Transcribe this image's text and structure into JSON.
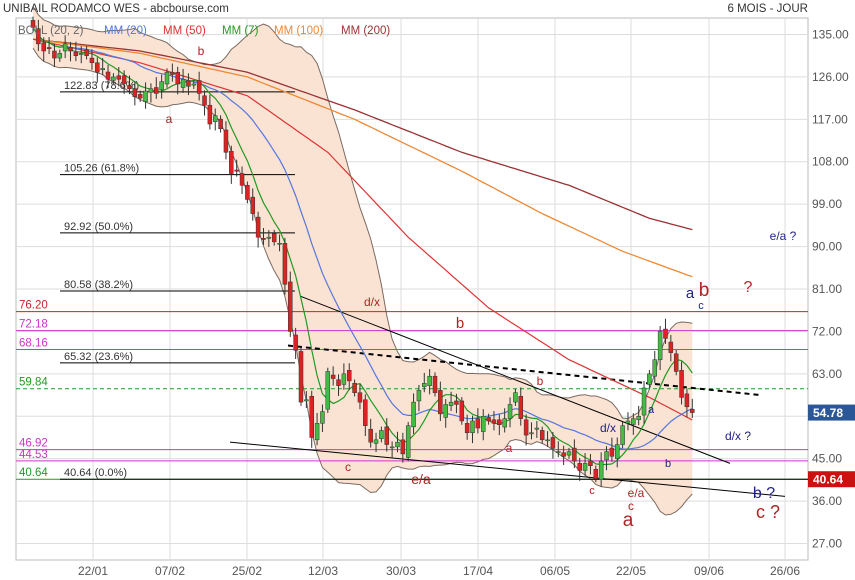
{
  "header": {
    "title": "UNIBAIL RODAMCO WES - abcbourse.com",
    "period": "6 MOIS - JOUR"
  },
  "legend": {
    "boll": "BOLL (20, 2)",
    "items": [
      {
        "label": "MM (20)",
        "color": "#5577dd"
      },
      {
        "label": "MM (50)",
        "color": "#dd3333"
      },
      {
        "label": "MM (7)",
        "color": "#229922"
      },
      {
        "label": "MM (100)",
        "color": "#ee8833"
      },
      {
        "label": "MM (200)",
        "color": "#993333"
      }
    ]
  },
  "colors": {
    "up": "#44bb44",
    "down": "#dd2222",
    "band_fill": "#fbe3d4",
    "band_line": "#7a6a60",
    "grid": "#dddddd",
    "pink": "#cc33cc",
    "red_level": "#cc2222",
    "green_level": "#229922",
    "annot_red": "#b22222",
    "annot_blue": "#22228b"
  },
  "chart_data": {
    "type": "candlestick",
    "y_ticks": [
      135.0,
      126.0,
      117.0,
      108.0,
      99.0,
      90.0,
      81.0,
      72.0,
      63.0,
      54.0,
      45.0,
      36.0,
      27.0
    ],
    "x_ticks": [
      "22/01",
      "07/02",
      "25/02",
      "12/03",
      "30/03",
      "17/04",
      "06/05",
      "22/05",
      "09/06",
      "26/06"
    ],
    "ylim": [
      23.5,
      138.5
    ],
    "last_price": "54.78",
    "fib_levels": [
      {
        "value": 122.83,
        "label": "122.83  (78.6%)"
      },
      {
        "value": 105.26,
        "label": "105.26  (61.8%)"
      },
      {
        "value": 92.92,
        "label": "92.92  (50.0%)"
      },
      {
        "value": 80.58,
        "label": "80.58  (38.2%)"
      },
      {
        "value": 65.32,
        "label": "65.32  (23.6%)"
      },
      {
        "value": 40.64,
        "label": "40.64  (0.0%)"
      }
    ],
    "levels": [
      {
        "value": 76.2,
        "label": "76.20",
        "kind": "red"
      },
      {
        "value": 72.18,
        "label": "72.18",
        "kind": "pink"
      },
      {
        "value": 68.16,
        "label": "68.16",
        "kind": "pink"
      },
      {
        "value": 59.84,
        "label": "59.84",
        "kind": "green-dash"
      },
      {
        "value": 46.92,
        "label": "46.92",
        "kind": "pink"
      },
      {
        "value": 44.53,
        "label": "44.53",
        "kind": "pink"
      },
      {
        "value": 40.64,
        "label": "40.64",
        "kind": "green"
      }
    ],
    "closes": [
      136.5,
      133,
      131.5,
      132,
      130,
      131,
      133,
      131.5,
      130.5,
      131,
      130.5,
      129,
      127,
      127.8,
      125.5,
      126,
      125.5,
      124.6,
      123.5,
      121.8,
      121.5,
      123,
      123.5,
      122.5,
      125,
      127,
      126.5,
      124.5,
      125.5,
      124,
      124.5,
      122.5,
      120,
      116,
      117.8,
      115,
      110,
      105.5,
      106,
      103,
      100,
      97,
      92,
      91.5,
      92,
      91,
      90.7,
      82,
      72,
      68,
      57,
      57.5,
      49.5,
      52.5,
      55,
      63.5,
      62,
      60.5,
      63,
      61.5,
      59,
      57,
      52,
      48.5,
      49,
      51,
      48,
      47.5,
      48.5,
      46,
      52,
      57,
      59.5,
      61,
      62.5,
      59,
      54.5,
      56.5,
      57,
      56.5,
      53,
      50.5,
      53,
      51.5,
      54,
      53,
      52.5,
      52.2,
      53.5,
      56.5,
      59,
      53.5,
      50,
      50.5,
      51.5,
      49,
      49,
      47.2,
      46.5,
      45.5,
      46.5,
      44.5,
      42.5,
      44,
      43.5,
      40.8,
      44.5,
      46.5,
      45.5,
      48,
      52,
      53,
      53.5,
      54,
      60,
      63,
      66,
      72,
      70.5,
      67.5,
      63.5,
      58,
      56,
      54.78
    ]
  },
  "annotations": [
    {
      "text": "b",
      "color": "red",
      "size": 12
    },
    {
      "text": "a",
      "color": "red",
      "size": 12
    },
    {
      "text": "d/x",
      "color": "red",
      "size": 12
    },
    {
      "text": "b",
      "color": "red",
      "size": 15
    },
    {
      "text": "c",
      "color": "red",
      "size": 12
    },
    {
      "text": "e/a",
      "color": "red",
      "size": 14
    },
    {
      "text": "b",
      "color": "red",
      "size": 12
    },
    {
      "text": "a",
      "color": "red",
      "size": 12
    },
    {
      "text": "d/x",
      "color": "blue",
      "size": 12
    },
    {
      "text": "a",
      "color": "blue",
      "size": 11
    },
    {
      "text": "b",
      "color": "blue",
      "size": 11
    },
    {
      "text": "c",
      "color": "red",
      "size": 11
    },
    {
      "text": "e/a",
      "color": "red",
      "size": 12
    },
    {
      "text": "c",
      "color": "red",
      "size": 12
    },
    {
      "text": "a",
      "color": "red",
      "size": 19
    },
    {
      "text": "a",
      "color": "blue",
      "size": 15
    },
    {
      "text": "b",
      "color": "red",
      "size": 19
    },
    {
      "text": "?",
      "color": "red",
      "size": 16
    },
    {
      "text": "c",
      "color": "blue",
      "size": 11
    },
    {
      "text": "e/a ?",
      "color": "blue",
      "size": 12
    },
    {
      "text": "d/x ?",
      "color": "blue",
      "size": 12
    },
    {
      "text": "b ?",
      "color": "blue",
      "size": 16
    },
    {
      "text": "c ?",
      "color": "red",
      "size": 18
    }
  ]
}
